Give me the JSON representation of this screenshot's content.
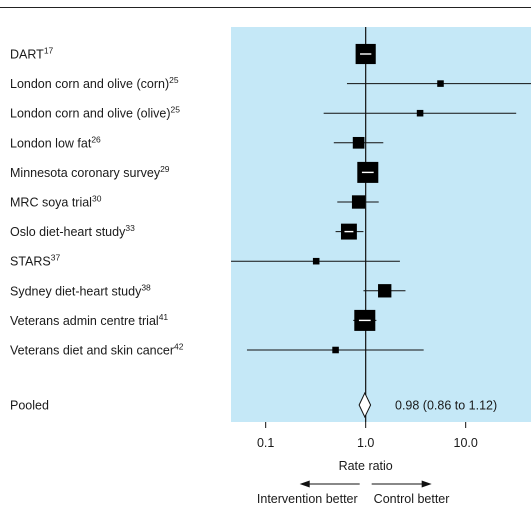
{
  "chart_data": {
    "type": "forest",
    "xlabel": "Rate ratio",
    "xscale": "log",
    "xlim": [
      0.045,
      45
    ],
    "x_ticks": [
      {
        "value": 0.1,
        "label": "0.1"
      },
      {
        "value": 1.0,
        "label": "1.0"
      },
      {
        "value": 10.0,
        "label": "10.0"
      }
    ],
    "reference_line": 1.0,
    "panel_color": "#c5e8f7",
    "favours_left": "Intervention better",
    "favours_right": "Control better",
    "studies": [
      {
        "name": "DART",
        "ref": "17",
        "estimate": 1.0,
        "ci_low": 0.8,
        "ci_high": 1.25,
        "weight": 0.95
      },
      {
        "name": "London corn and olive (corn)",
        "ref": "25",
        "estimate": 5.6,
        "ci_low": 0.65,
        "ci_high": 45,
        "weight": 0.15
      },
      {
        "name": "London corn and olive (olive)",
        "ref": "25",
        "estimate": 3.5,
        "ci_low": 0.38,
        "ci_high": 32,
        "weight": 0.15
      },
      {
        "name": "London low fat",
        "ref": "26",
        "estimate": 0.85,
        "ci_low": 0.48,
        "ci_high": 1.5,
        "weight": 0.45
      },
      {
        "name": "Minnesota coronary survey",
        "ref": "29",
        "estimate": 1.05,
        "ci_low": 0.85,
        "ci_high": 1.3,
        "weight": 1.0
      },
      {
        "name": "MRC soya trial",
        "ref": "30",
        "estimate": 0.85,
        "ci_low": 0.52,
        "ci_high": 1.35,
        "weight": 0.55
      },
      {
        "name": "Oslo diet-heart study",
        "ref": "33",
        "estimate": 0.68,
        "ci_low": 0.5,
        "ci_high": 0.95,
        "weight": 0.7
      },
      {
        "name": "STARS",
        "ref": "37",
        "estimate": 0.32,
        "ci_low": 0.045,
        "ci_high": 2.2,
        "weight": 0.15
      },
      {
        "name": "Sydney diet-heart study",
        "ref": "38",
        "estimate": 1.55,
        "ci_low": 0.95,
        "ci_high": 2.5,
        "weight": 0.55
      },
      {
        "name": "Veterans admin centre trial",
        "ref": "41",
        "estimate": 0.98,
        "ci_low": 0.75,
        "ci_high": 1.28,
        "weight": 1.0
      },
      {
        "name": "Veterans diet and skin cancer",
        "ref": "42",
        "estimate": 0.5,
        "ci_low": 0.065,
        "ci_high": 3.8,
        "weight": 0.15
      }
    ],
    "pooled": {
      "name": "Pooled",
      "estimate": 0.98,
      "ci_low": 0.86,
      "ci_high": 1.12,
      "label": "0.98 (0.86 to 1.12)"
    }
  }
}
